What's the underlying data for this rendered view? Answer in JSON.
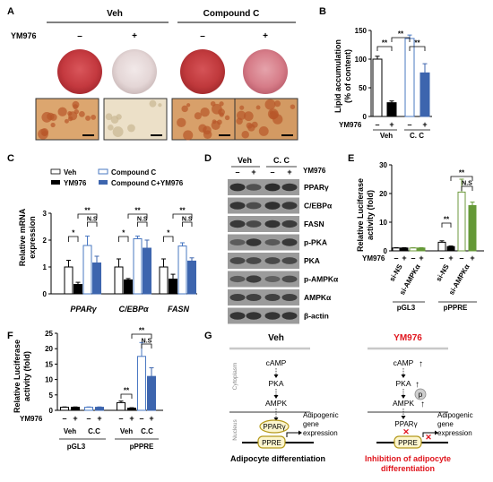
{
  "panels": {
    "a": "A",
    "b": "B",
    "c": "C",
    "d": "D",
    "e": "E",
    "f": "F",
    "g": "G"
  },
  "panel_a": {
    "group_veh": "Veh",
    "group_cc": "Compound C",
    "row_label": "YM976",
    "signs": [
      "–",
      "+",
      "–",
      "+"
    ],
    "dish_colors": [
      "#c4393f",
      "#e4d6d6",
      "#c0393c",
      "#d67c88"
    ],
    "micro_colors": [
      "#dca66f",
      "#ece0c8",
      "#d8a06a",
      "#d39a63"
    ]
  },
  "panel_b": {
    "ylabel_1": "Lipid accumulation",
    "ylabel_2": "(% of content)",
    "yticks": [
      "0",
      "50",
      "100",
      "150"
    ],
    "row_label": "YM976",
    "signs": [
      "–",
      "+",
      "–",
      "+"
    ],
    "groups": [
      "Veh",
      "C. C"
    ],
    "sig": [
      "**",
      "**",
      "**"
    ]
  },
  "panel_c": {
    "ylabel_1": "Relative mRNA",
    "ylabel_2": "expression",
    "yticks": [
      "0",
      "1",
      "2",
      "3"
    ],
    "genes": [
      "PPARγ",
      "C/EBPα",
      "FASN"
    ],
    "sig_single": "*",
    "sig_double": "**",
    "sig_ns": "N.S"
  },
  "panel_d": {
    "col_veh": "Veh",
    "col_cc": "C. C",
    "row_label": "YM976",
    "signs": [
      "–",
      "+",
      "–",
      "+"
    ],
    "blots": [
      "PPARγ",
      "C/EBPα",
      "FASN",
      "p-PKA",
      "PKA",
      "p-AMPKα",
      "AMPKα",
      "β-actin"
    ]
  },
  "panel_e": {
    "ylabel_1": "Relative Luciferase",
    "ylabel_2": "activity (fold)",
    "yticks": [
      "0",
      "10",
      "20",
      "30"
    ],
    "row_label": "YM976",
    "signs": [
      "–",
      "+",
      "–",
      "+",
      "–",
      "+",
      "–",
      "+"
    ],
    "sirna": [
      "si-NS",
      "si-AMPKα",
      "si-NS",
      "si-AMPKα"
    ],
    "reporters": [
      "pGL3",
      "pPPRE"
    ],
    "sig_double": "**",
    "sig_ns": "N.S"
  },
  "panel_f": {
    "ylabel_1": "Relative Luciferase",
    "ylabel_2": "activity (fold)",
    "yticks": [
      "0",
      "5",
      "10",
      "15",
      "20",
      "25"
    ],
    "row_label": "YM976",
    "signs": [
      "–",
      "+",
      "–",
      "+",
      "–",
      "+",
      "–",
      "+"
    ],
    "groups": [
      "Veh",
      "C.C",
      "Veh",
      "C.C"
    ],
    "reporters": [
      "pGL3",
      "pPPRE"
    ],
    "sig_double": "**",
    "sig_ns": "N.S"
  },
  "panel_g": {
    "title_left": "Veh",
    "title_right": "YM976",
    "cytoplasm": "Cytoplasm",
    "nucleus": "Nucleus",
    "camp": "cAMP",
    "pka": "PKA",
    "ampk": "AMPK",
    "p": "p",
    "ppar": "PPARγ",
    "ppre": "PPRE",
    "adipogenic_1": "Adipogenic",
    "adipogenic_2": "gene",
    "adipogenic_3": "expression",
    "caption_left": "Adipocyte differentiation",
    "caption_right_1": "Inhibition of adipocyte",
    "caption_right_2": "differentiation",
    "arrow_up": "↑",
    "cross": "✕"
  },
  "colors": {
    "veh": "#ffffff",
    "ym976": "#000000",
    "cc": "#ffffff",
    "cc_edge": "#4a78c2",
    "cc_ym": "#3d65ae",
    "si_ampk_open": "#ffffff",
    "si_ampk_edge": "#6e9a3c",
    "si_ampk_fill": "#659937",
    "highlight_red": "#e0151d"
  },
  "chart_data": [
    {
      "panel": "B",
      "type": "bar",
      "categories": [
        "Veh –",
        "Veh +",
        "C. C –",
        "C. C +"
      ],
      "values": [
        100,
        24,
        136,
        76
      ],
      "errors": [
        5,
        3,
        6,
        16
      ],
      "ylabel": "Lipid accumulation (% of content)",
      "ylim": [
        0,
        150
      ]
    },
    {
      "panel": "C",
      "type": "bar",
      "categories": [
        "PPARγ",
        "C/EBPα",
        "FASN"
      ],
      "series": [
        {
          "name": "Veh",
          "values": [
            1.0,
            1.0,
            1.0
          ],
          "errors": [
            0.25,
            0.3,
            0.3
          ]
        },
        {
          "name": "YM976",
          "values": [
            0.35,
            0.52,
            0.55
          ],
          "errors": [
            0.08,
            0.05,
            0.18
          ]
        },
        {
          "name": "Compound C",
          "values": [
            1.8,
            2.05,
            1.78
          ],
          "errors": [
            0.35,
            0.1,
            0.12
          ]
        },
        {
          "name": "Compound C+YM976",
          "values": [
            1.15,
            1.7,
            1.22
          ],
          "errors": [
            0.25,
            0.3,
            0.12
          ]
        }
      ],
      "ylabel": "Relative mRNA expression",
      "ylim": [
        0,
        3
      ]
    },
    {
      "panel": "E",
      "type": "bar",
      "categories": [
        "pGL3 si-NS –",
        "pGL3 si-NS +",
        "pGL3 si-AMPKα –",
        "pGL3 si-AMPKα +",
        "pPPRE si-NS –",
        "pPPRE si-NS +",
        "pPPRE si-AMPKα –",
        "pPPRE si-AMPKα +"
      ],
      "values": [
        1.0,
        1.0,
        1.0,
        1.0,
        3.0,
        1.5,
        20.5,
        15.8
      ],
      "errors": [
        0.1,
        0.1,
        0.1,
        0.1,
        0.5,
        0.2,
        4.5,
        1.2
      ],
      "ylabel": "Relative Luciferase activity (fold)",
      "ylim": [
        0,
        30
      ]
    },
    {
      "panel": "F",
      "type": "bar",
      "categories": [
        "pGL3 Veh –",
        "pGL3 Veh +",
        "pGL3 C.C –",
        "pGL3 C.C +",
        "pPPRE Veh –",
        "pPPRE Veh +",
        "pPPRE C.C –",
        "pPPRE C.C +"
      ],
      "values": [
        1.0,
        1.0,
        1.0,
        1.0,
        2.5,
        0.7,
        17.5,
        11.0
      ],
      "errors": [
        0.1,
        0.1,
        0.1,
        0.1,
        0.5,
        0.15,
        4.5,
        2.8
      ],
      "ylabel": "Relative Luciferase activity (fold)",
      "ylim": [
        0,
        25
      ]
    }
  ]
}
